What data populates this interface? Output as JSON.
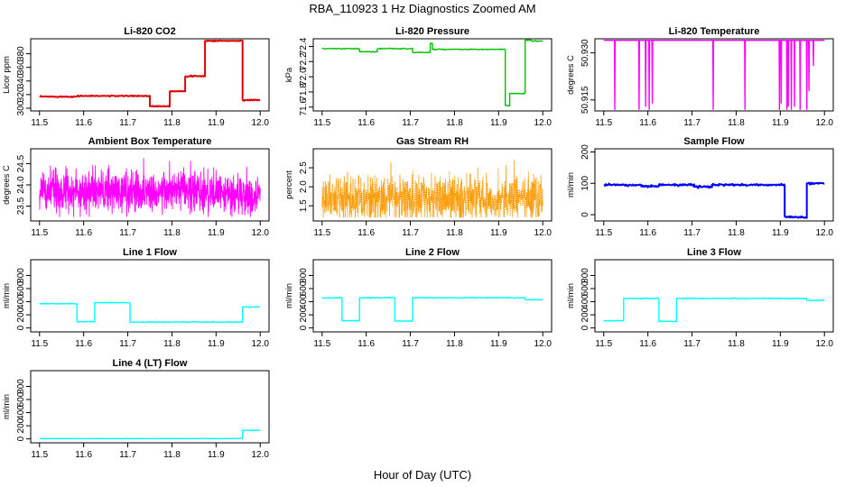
{
  "figure": {
    "title": "RBA_110923  1 Hz Diagnostics Zoomed AM",
    "xlabel": "Hour of Day (UTC)"
  },
  "chart_data": [
    {
      "id": "co2",
      "type": "line",
      "title": "Li-820 CO2",
      "xlabel": "",
      "ylabel": "Licor ppm",
      "color": "#e00000",
      "xlim": [
        11.48,
        12.02
      ],
      "ylim": [
        296,
        402
      ],
      "xticks": [
        "11.5",
        "11.6",
        "11.7",
        "11.8",
        "11.9",
        "12.0"
      ],
      "yticks": [
        "300",
        "320",
        "340",
        "360",
        "380"
      ],
      "noise": 0.8,
      "segments": [
        {
          "x": [
            11.5,
            11.585
          ],
          "y": 317
        },
        {
          "x": [
            11.585,
            11.75
          ],
          "y": 318
        },
        {
          "x": [
            11.75,
            11.795
          ],
          "y": 303
        },
        {
          "x": [
            11.795,
            11.83
          ],
          "y": 325
        },
        {
          "x": [
            11.83,
            11.875
          ],
          "y": 347
        },
        {
          "x": [
            11.875,
            11.96
          ],
          "y": 399
        },
        {
          "x": [
            11.96,
            12.0
          ],
          "y": 312
        }
      ]
    },
    {
      "id": "pressure",
      "type": "line",
      "title": "Li-820 Pressure",
      "xlabel": "",
      "ylabel": "kPa",
      "color": "#00c000",
      "xlim": [
        11.48,
        12.02
      ],
      "ylim": [
        71.55,
        72.5
      ],
      "xticks": [
        "11.5",
        "11.6",
        "11.7",
        "11.8",
        "11.9",
        "12.0"
      ],
      "yticks": [
        "71.6",
        "71.8",
        "72.0",
        "72.2",
        "72.4"
      ],
      "noise": 0.006,
      "segments": [
        {
          "x": [
            11.5,
            11.585
          ],
          "y": 72.37
        },
        {
          "x": [
            11.585,
            11.625
          ],
          "y": 72.33
        },
        {
          "x": [
            11.625,
            11.705
          ],
          "y": 72.37
        },
        {
          "x": [
            11.705,
            11.745
          ],
          "y": 72.32
        },
        {
          "x": [
            11.745,
            11.75
          ],
          "y": 72.44
        },
        {
          "x": [
            11.75,
            11.915
          ],
          "y": 72.36
        },
        {
          "x": [
            11.915,
            11.925
          ],
          "y": 71.62
        },
        {
          "x": [
            11.925,
            11.96
          ],
          "y": 71.78
        },
        {
          "x": [
            11.96,
            11.975
          ],
          "y": 72.48
        },
        {
          "x": [
            11.975,
            12.0
          ],
          "y": 72.47
        }
      ]
    },
    {
      "id": "temperature",
      "type": "line",
      "title": "Li-820 Temperature",
      "xlabel": "",
      "ylabel": "degrees C",
      "color": "#ff00ff",
      "xlim": [
        11.48,
        12.02
      ],
      "ylim": [
        50.9115,
        50.9345
      ],
      "xticks": [
        "11.5",
        "11.6",
        "11.7",
        "11.8",
        "11.9",
        "12.0"
      ],
      "yticks": [
        "50.915",
        "50.930"
      ],
      "baseline": 50.934,
      "dips": [
        {
          "x": 11.525,
          "y": 50.912
        },
        {
          "x": 11.58,
          "y": 50.912
        },
        {
          "x": 11.595,
          "y": 50.913
        },
        {
          "x": 11.603,
          "y": 50.912
        },
        {
          "x": 11.61,
          "y": 50.914
        },
        {
          "x": 11.748,
          "y": 50.912
        },
        {
          "x": 11.82,
          "y": 50.912
        },
        {
          "x": 11.898,
          "y": 50.912
        },
        {
          "x": 11.902,
          "y": 50.914
        },
        {
          "x": 11.915,
          "y": 50.912
        },
        {
          "x": 11.918,
          "y": 50.913
        },
        {
          "x": 11.925,
          "y": 50.912
        },
        {
          "x": 11.932,
          "y": 50.913
        },
        {
          "x": 11.945,
          "y": 50.912
        },
        {
          "x": 11.96,
          "y": 50.912
        },
        {
          "x": 11.965,
          "y": 50.918
        },
        {
          "x": 11.975,
          "y": 50.926
        }
      ]
    },
    {
      "id": "ambient",
      "type": "line",
      "title": "Ambient Box Temperature",
      "xlabel": "",
      "ylabel": "degrees C",
      "color": "#ff00ff",
      "xlim": [
        11.48,
        12.02
      ],
      "ylim": [
        23.15,
        24.85
      ],
      "xticks": [
        "11.5",
        "11.6",
        "11.7",
        "11.8",
        "11.9",
        "12.0"
      ],
      "yticks": [
        "23.5",
        "24.0",
        "24.5"
      ],
      "noisy": true,
      "mean": 23.85,
      "sd": 0.24,
      "clip": [
        23.25,
        24.8
      ],
      "trend_end": 23.7
    },
    {
      "id": "rh",
      "type": "line",
      "title": "Gas Stream RH",
      "xlabel": "",
      "ylabel": "percent",
      "color": "#ff9900",
      "xlim": [
        11.48,
        12.02
      ],
      "ylim": [
        1.1,
        3.0
      ],
      "xticks": [
        "11.5",
        "11.6",
        "11.7",
        "11.8",
        "11.9",
        "12.0"
      ],
      "yticks": [
        "1.5",
        "2.0",
        "2.5"
      ],
      "noisy": true,
      "mean": 1.7,
      "sd": 0.3,
      "clip": [
        1.2,
        2.75
      ],
      "trend_end": 1.7
    },
    {
      "id": "sample",
      "type": "line",
      "title": "Sample Flow",
      "xlabel": "",
      "ylabel": "ml/min",
      "color": "#0000ff",
      "xlim": [
        11.48,
        12.02
      ],
      "ylim": [
        -20,
        210
      ],
      "xticks": [
        "11.5",
        "11.6",
        "11.7",
        "11.8",
        "11.9",
        "12.0"
      ],
      "yticks": [
        "0",
        "100",
        "200"
      ],
      "noise": 3,
      "segments": [
        {
          "x": [
            11.5,
            11.585
          ],
          "y": 95
        },
        {
          "x": [
            11.585,
            11.625
          ],
          "y": 90
        },
        {
          "x": [
            11.625,
            11.705
          ],
          "y": 95
        },
        {
          "x": [
            11.705,
            11.745
          ],
          "y": 89
        },
        {
          "x": [
            11.745,
            11.91
          ],
          "y": 95
        },
        {
          "x": [
            11.91,
            11.96
          ],
          "y": -8
        },
        {
          "x": [
            11.96,
            12.0
          ],
          "y": 100
        }
      ]
    },
    {
      "id": "line1",
      "type": "line",
      "title": "Line 1 Flow",
      "xlabel": "",
      "ylabel": "ml/min",
      "color": "#00ffff",
      "xlim": [
        11.48,
        12.02
      ],
      "ylim": [
        -60,
        1040
      ],
      "xticks": [
        "11.5",
        "11.6",
        "11.7",
        "11.8",
        "11.9",
        "12.0"
      ],
      "yticks": [
        "0",
        "200",
        "400",
        "600",
        "800"
      ],
      "noise": 6,
      "segments": [
        {
          "x": [
            11.5,
            11.585
          ],
          "y": 370
        },
        {
          "x": [
            11.585,
            11.625
          ],
          "y": 95
        },
        {
          "x": [
            11.625,
            11.705
          ],
          "y": 385
        },
        {
          "x": [
            11.705,
            11.96
          ],
          "y": 90
        },
        {
          "x": [
            11.96,
            12.0
          ],
          "y": 320
        }
      ]
    },
    {
      "id": "line2",
      "type": "line",
      "title": "Line 2 Flow",
      "xlabel": "",
      "ylabel": "ml/min",
      "color": "#00ffff",
      "xlim": [
        11.48,
        12.02
      ],
      "ylim": [
        -60,
        1040
      ],
      "xticks": [
        "11.5",
        "11.6",
        "11.7",
        "11.8",
        "11.9",
        "12.0"
      ],
      "yticks": [
        "0",
        "200",
        "400",
        "600",
        "800"
      ],
      "noise": 6,
      "segments": [
        {
          "x": [
            11.5,
            11.545
          ],
          "y": 460
        },
        {
          "x": [
            11.545,
            11.585
          ],
          "y": 110
        },
        {
          "x": [
            11.585,
            11.665
          ],
          "y": 460
        },
        {
          "x": [
            11.665,
            11.705
          ],
          "y": 105
        },
        {
          "x": [
            11.705,
            11.96
          ],
          "y": 460
        },
        {
          "x": [
            11.96,
            12.0
          ],
          "y": 430
        }
      ]
    },
    {
      "id": "line3",
      "type": "line",
      "title": "Line 3 Flow",
      "xlabel": "",
      "ylabel": "ml/min",
      "color": "#00ffff",
      "xlim": [
        11.48,
        12.02
      ],
      "ylim": [
        -60,
        1040
      ],
      "xticks": [
        "11.5",
        "11.6",
        "11.7",
        "11.8",
        "11.9",
        "12.0"
      ],
      "yticks": [
        "0",
        "200",
        "400",
        "600",
        "800"
      ],
      "noise": 6,
      "segments": [
        {
          "x": [
            11.5,
            11.545
          ],
          "y": 110
        },
        {
          "x": [
            11.545,
            11.625
          ],
          "y": 450
        },
        {
          "x": [
            11.625,
            11.665
          ],
          "y": 100
        },
        {
          "x": [
            11.665,
            11.96
          ],
          "y": 450
        },
        {
          "x": [
            11.96,
            12.0
          ],
          "y": 420
        }
      ]
    },
    {
      "id": "line4",
      "type": "line",
      "title": "Line 4 (LT) Flow",
      "xlabel": "",
      "ylabel": "ml/min",
      "color": "#00ffff",
      "xlim": [
        11.48,
        12.02
      ],
      "ylim": [
        -60,
        1040
      ],
      "xticks": [
        "11.5",
        "11.6",
        "11.7",
        "11.8",
        "11.9",
        "12.0"
      ],
      "yticks": [
        "0",
        "200",
        "400",
        "600",
        "800"
      ],
      "noise": 2,
      "segments": [
        {
          "x": [
            11.5,
            11.96
          ],
          "y": 5
        },
        {
          "x": [
            11.96,
            12.0
          ],
          "y": 130
        }
      ]
    }
  ]
}
